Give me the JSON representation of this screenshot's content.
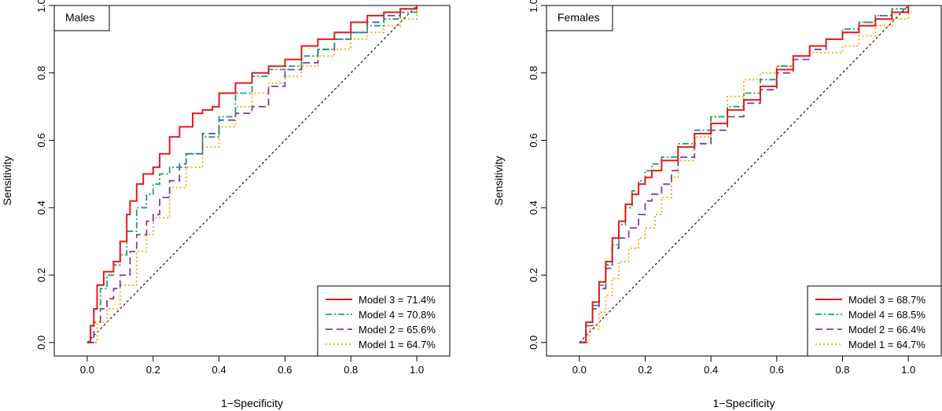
{
  "chart_data": [
    {
      "type": "line",
      "panel_label": "Males",
      "xlabel": "1−Specificity",
      "ylabel": "Sensitivity",
      "xlim": [
        -0.1,
        1.1
      ],
      "ylim": [
        -0.04,
        1.0
      ],
      "xticks": [
        "0.0",
        "0.2",
        "0.4",
        "0.6",
        "0.8",
        "1.0"
      ],
      "yticks": [
        "0.0",
        "0.2",
        "0.4",
        "0.6",
        "0.8",
        "1.0"
      ],
      "legend_position": "bottom-right",
      "reference_line": {
        "name": "chance",
        "x": [
          0,
          1
        ],
        "y": [
          0,
          1
        ],
        "color": "#000000",
        "style": "dotted"
      },
      "series": [
        {
          "name": "Model 3",
          "legend": "Model 3 = 71.4%",
          "color": "#e41a1c",
          "style": "solid",
          "x": [
            0,
            0.01,
            0.02,
            0.03,
            0.05,
            0.08,
            0.1,
            0.12,
            0.13,
            0.15,
            0.17,
            0.2,
            0.22,
            0.25,
            0.28,
            0.32,
            0.35,
            0.38,
            0.4,
            0.45,
            0.5,
            0.55,
            0.6,
            0.65,
            0.7,
            0.75,
            0.8,
            0.85,
            0.9,
            0.95,
            1.0
          ],
          "y": [
            0,
            0.05,
            0.1,
            0.17,
            0.21,
            0.24,
            0.3,
            0.38,
            0.42,
            0.47,
            0.5,
            0.52,
            0.56,
            0.61,
            0.64,
            0.68,
            0.69,
            0.7,
            0.74,
            0.77,
            0.8,
            0.82,
            0.84,
            0.88,
            0.9,
            0.92,
            0.95,
            0.97,
            0.98,
            0.99,
            1.0
          ]
        },
        {
          "name": "Model 4",
          "legend": "Model 4 = 70.8%",
          "color": "#1b9e77",
          "style": "dashdot",
          "x": [
            0,
            0.01,
            0.02,
            0.04,
            0.06,
            0.08,
            0.1,
            0.12,
            0.15,
            0.18,
            0.2,
            0.22,
            0.25,
            0.3,
            0.35,
            0.4,
            0.45,
            0.5,
            0.55,
            0.6,
            0.65,
            0.7,
            0.75,
            0.8,
            0.85,
            0.9,
            0.95,
            1.0
          ],
          "y": [
            0,
            0.05,
            0.1,
            0.16,
            0.2,
            0.23,
            0.26,
            0.33,
            0.4,
            0.44,
            0.47,
            0.5,
            0.52,
            0.56,
            0.61,
            0.67,
            0.74,
            0.79,
            0.81,
            0.82,
            0.85,
            0.87,
            0.9,
            0.92,
            0.94,
            0.96,
            0.98,
            1.0
          ]
        },
        {
          "name": "Model 2",
          "legend": "Model 2 = 65.6%",
          "color": "#7b3fa0",
          "style": "dashed",
          "x": [
            0,
            0.02,
            0.04,
            0.06,
            0.08,
            0.1,
            0.13,
            0.15,
            0.18,
            0.2,
            0.22,
            0.25,
            0.28,
            0.3,
            0.35,
            0.4,
            0.45,
            0.5,
            0.55,
            0.6,
            0.65,
            0.7,
            0.75,
            0.8,
            0.85,
            0.9,
            0.95,
            1.0
          ],
          "y": [
            0,
            0.06,
            0.1,
            0.13,
            0.16,
            0.2,
            0.27,
            0.32,
            0.36,
            0.38,
            0.43,
            0.48,
            0.53,
            0.56,
            0.62,
            0.66,
            0.68,
            0.7,
            0.76,
            0.81,
            0.83,
            0.87,
            0.9,
            0.92,
            0.95,
            0.97,
            0.99,
            1.0
          ]
        },
        {
          "name": "Model 1",
          "legend": "Model 1 = 64.7%",
          "color": "#ffa500",
          "style": "dotted",
          "x": [
            0,
            0.03,
            0.06,
            0.1,
            0.15,
            0.18,
            0.2,
            0.25,
            0.3,
            0.35,
            0.4,
            0.45,
            0.5,
            0.55,
            0.6,
            0.65,
            0.7,
            0.75,
            0.8,
            0.85,
            0.9,
            0.95,
            1.0
          ],
          "y": [
            0,
            0.06,
            0.1,
            0.17,
            0.27,
            0.32,
            0.37,
            0.46,
            0.52,
            0.58,
            0.64,
            0.7,
            0.74,
            0.77,
            0.79,
            0.82,
            0.85,
            0.87,
            0.9,
            0.92,
            0.94,
            0.96,
            1.0
          ]
        }
      ]
    },
    {
      "type": "line",
      "panel_label": "Females",
      "xlabel": "1−Specificity",
      "ylabel": "Sensitivity",
      "xlim": [
        -0.1,
        1.1
      ],
      "ylim": [
        -0.04,
        1.0
      ],
      "xticks": [
        "0.0",
        "0.2",
        "0.4",
        "0.6",
        "0.8",
        "1.0"
      ],
      "yticks": [
        "0.0",
        "0.2",
        "0.4",
        "0.6",
        "0.8",
        "1.0"
      ],
      "legend_position": "bottom-right",
      "reference_line": {
        "name": "chance",
        "x": [
          0,
          1
        ],
        "y": [
          0,
          1
        ],
        "color": "#000000",
        "style": "dotted"
      },
      "series": [
        {
          "name": "Model 3",
          "legend": "Model 3 = 68.7%",
          "color": "#e41a1c",
          "style": "solid",
          "x": [
            0,
            0.02,
            0.04,
            0.06,
            0.08,
            0.1,
            0.12,
            0.14,
            0.16,
            0.18,
            0.2,
            0.22,
            0.25,
            0.3,
            0.35,
            0.4,
            0.45,
            0.5,
            0.55,
            0.6,
            0.65,
            0.7,
            0.75,
            0.8,
            0.85,
            0.9,
            0.95,
            1.0
          ],
          "y": [
            0,
            0.06,
            0.12,
            0.18,
            0.24,
            0.31,
            0.36,
            0.41,
            0.44,
            0.47,
            0.49,
            0.51,
            0.54,
            0.58,
            0.62,
            0.65,
            0.69,
            0.72,
            0.76,
            0.81,
            0.85,
            0.88,
            0.9,
            0.92,
            0.94,
            0.96,
            0.98,
            1.0
          ]
        },
        {
          "name": "Model 4",
          "legend": "Model 4 = 68.5%",
          "color": "#1b9e77",
          "style": "dashdot",
          "x": [
            0,
            0.02,
            0.04,
            0.06,
            0.08,
            0.1,
            0.12,
            0.14,
            0.16,
            0.18,
            0.2,
            0.22,
            0.25,
            0.3,
            0.35,
            0.4,
            0.45,
            0.5,
            0.55,
            0.6,
            0.65,
            0.7,
            0.75,
            0.8,
            0.85,
            0.9,
            0.95,
            1.0
          ],
          "y": [
            0,
            0.05,
            0.11,
            0.17,
            0.23,
            0.29,
            0.35,
            0.4,
            0.45,
            0.48,
            0.51,
            0.53,
            0.55,
            0.59,
            0.63,
            0.67,
            0.7,
            0.74,
            0.78,
            0.82,
            0.85,
            0.88,
            0.9,
            0.93,
            0.95,
            0.97,
            0.99,
            1.0
          ]
        },
        {
          "name": "Model 2",
          "legend": "Model 2 = 66.4%",
          "color": "#7b3fa0",
          "style": "dashed",
          "x": [
            0,
            0.02,
            0.04,
            0.06,
            0.08,
            0.1,
            0.12,
            0.15,
            0.18,
            0.2,
            0.22,
            0.25,
            0.28,
            0.3,
            0.35,
            0.4,
            0.45,
            0.5,
            0.55,
            0.6,
            0.65,
            0.7,
            0.75,
            0.8,
            0.85,
            0.9,
            0.95,
            1.0
          ],
          "y": [
            0,
            0.05,
            0.1,
            0.16,
            0.22,
            0.28,
            0.31,
            0.34,
            0.38,
            0.42,
            0.44,
            0.47,
            0.51,
            0.55,
            0.59,
            0.63,
            0.67,
            0.71,
            0.75,
            0.8,
            0.84,
            0.87,
            0.9,
            0.92,
            0.95,
            0.97,
            0.98,
            1.0
          ]
        },
        {
          "name": "Model 1",
          "legend": "Model 1 = 64.7%",
          "color": "#ffa500",
          "style": "dotted",
          "x": [
            0,
            0.03,
            0.06,
            0.08,
            0.1,
            0.12,
            0.15,
            0.18,
            0.2,
            0.23,
            0.25,
            0.28,
            0.3,
            0.35,
            0.4,
            0.45,
            0.5,
            0.55,
            0.6,
            0.65,
            0.7,
            0.75,
            0.8,
            0.85,
            0.9,
            0.95,
            1.0
          ],
          "y": [
            0,
            0.04,
            0.09,
            0.14,
            0.19,
            0.24,
            0.28,
            0.31,
            0.34,
            0.38,
            0.43,
            0.49,
            0.54,
            0.61,
            0.67,
            0.73,
            0.78,
            0.8,
            0.82,
            0.85,
            0.86,
            0.86,
            0.88,
            0.91,
            0.94,
            0.96,
            1.0
          ]
        }
      ]
    }
  ]
}
